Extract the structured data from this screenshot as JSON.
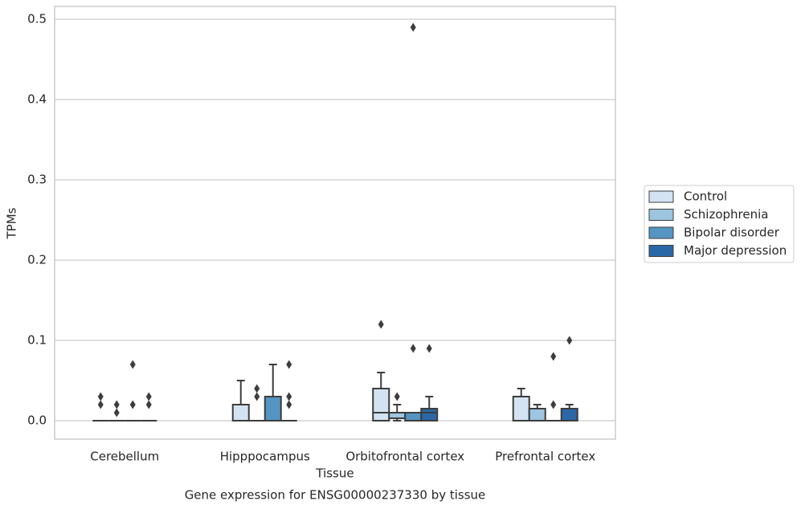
{
  "chart_data": {
    "type": "box",
    "title": "Gene expression for ENSG00000237330 by tissue",
    "xlabel": "Tissue",
    "ylabel": "TPMs",
    "categories": [
      "Cerebellum",
      "Hipppocampus",
      "Orbitofrontal cortex",
      "Prefrontal cortex"
    ],
    "ylim": [
      -0.023,
      0.516
    ],
    "yticks": [
      {
        "value": 0,
        "label": "0.0"
      },
      0.1,
      0.2,
      0.3,
      0.4,
      0.5
    ],
    "grid": true,
    "legend": "right",
    "series": [
      {
        "name": "Control",
        "color": "#d3e3f2",
        "whislo": [
          0,
          0,
          0,
          0
        ],
        "q1": [
          0,
          0,
          0,
          0
        ],
        "median": [
          0,
          0,
          0.01,
          0
        ],
        "q3": [
          0,
          0.02,
          0.04,
          0.03
        ],
        "whishi": [
          0,
          0.05,
          0.06,
          0.04
        ],
        "fliers": [
          [
            0.03,
            0.02
          ],
          [],
          [
            0.12
          ],
          []
        ]
      },
      {
        "name": "Schizophrenia",
        "color": "#9dc5df",
        "whislo": [
          0,
          0,
          0,
          0
        ],
        "q1": [
          0,
          0,
          0.003,
          0
        ],
        "median": [
          0,
          0,
          0.01,
          0
        ],
        "q3": [
          0,
          0,
          0.01,
          0.015
        ],
        "whishi": [
          0,
          0,
          0.02,
          0.02
        ],
        "fliers": [
          [
            0.02,
            0.01
          ],
          [
            0.04,
            0.03
          ],
          [
            0.03
          ],
          []
        ]
      },
      {
        "name": "Bipolar disorder",
        "color": "#5595c3",
        "whislo": [
          0,
          0,
          0,
          0
        ],
        "q1": [
          0,
          0,
          0,
          0
        ],
        "median": [
          0,
          0,
          0.01,
          0
        ],
        "q3": [
          0,
          0.03,
          0.01,
          0
        ],
        "whishi": [
          0,
          0.07,
          0.01,
          0
        ],
        "fliers": [
          [
            0.07,
            0.02
          ],
          [],
          [
            0.49,
            0.09
          ],
          [
            0.08,
            0.02
          ]
        ]
      },
      {
        "name": "Major depression",
        "color": "#2a67a7",
        "whislo": [
          0,
          0,
          0,
          0
        ],
        "q1": [
          0,
          0,
          0,
          0
        ],
        "median": [
          0,
          0,
          0.01,
          0
        ],
        "q3": [
          0,
          0,
          0.015,
          0.015
        ],
        "whishi": [
          0,
          0,
          0.03,
          0.02
        ],
        "fliers": [
          [
            0.03,
            0.02
          ],
          [
            0.07,
            0.03,
            0.02
          ],
          [
            0.09
          ],
          [
            0.1
          ]
        ]
      }
    ]
  }
}
